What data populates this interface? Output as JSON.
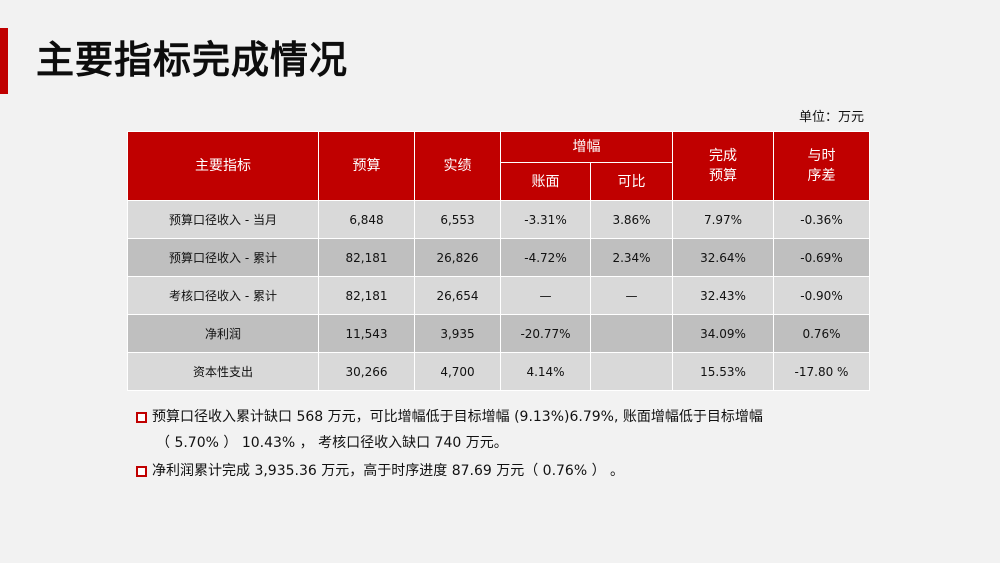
{
  "slide": {
    "title": "主要指标完成情况",
    "unit": "单位：万元",
    "accent_color": "#c00000"
  },
  "table": {
    "headers": {
      "metric": "主要指标",
      "budget": "预算",
      "actual": "实绩",
      "growth": "增幅",
      "growth_book": "账面",
      "growth_comparable": "可比",
      "completion_line1": "完成",
      "completion_line2": "预算",
      "vs_time_line1": "与时",
      "vs_time_line2": "序差"
    },
    "rows": [
      {
        "metric": "预算口径收入 - 当月",
        "budget": "6,848",
        "actual": "6,553",
        "book": "-3.31%",
        "comparable": "3.86%",
        "completion": "7.97%",
        "vs_time": "-0.36%"
      },
      {
        "metric": "预算口径收入 - 累计",
        "budget": "82,181",
        "actual": "26,826",
        "book": "-4.72%",
        "comparable": "2.34%",
        "completion": "32.64%",
        "vs_time": "-0.69%"
      },
      {
        "metric": "考核口径收入 - 累计",
        "budget": "82,181",
        "actual": "26,654",
        "book": "—",
        "comparable": "—",
        "completion": "32.43%",
        "vs_time": "-0.90%"
      },
      {
        "metric": "净利润",
        "budget": "11,543",
        "actual": "3,935",
        "book": "-20.77%",
        "comparable": "",
        "completion": "34.09%",
        "vs_time": "0.76%"
      },
      {
        "metric": "资本性支出",
        "budget": "30,266",
        "actual": "4,700",
        "book": "4.14%",
        "comparable": "",
        "completion": "15.53%",
        "vs_time": "-17.80 %"
      }
    ]
  },
  "notes": [
    {
      "line1": "预算口径收入累计缺口 568 万元，可比增幅低于目标增幅 (9.13%)6.79%, 账面增幅低于目标增幅",
      "line2": "（ 5.70% ） 10.43% ， 考核口径收入缺口 740 万元。"
    },
    {
      "line1": "净利润累计完成 3,935.36 万元，高于时序进度 87.69 万元（ 0.76% ） 。"
    }
  ]
}
